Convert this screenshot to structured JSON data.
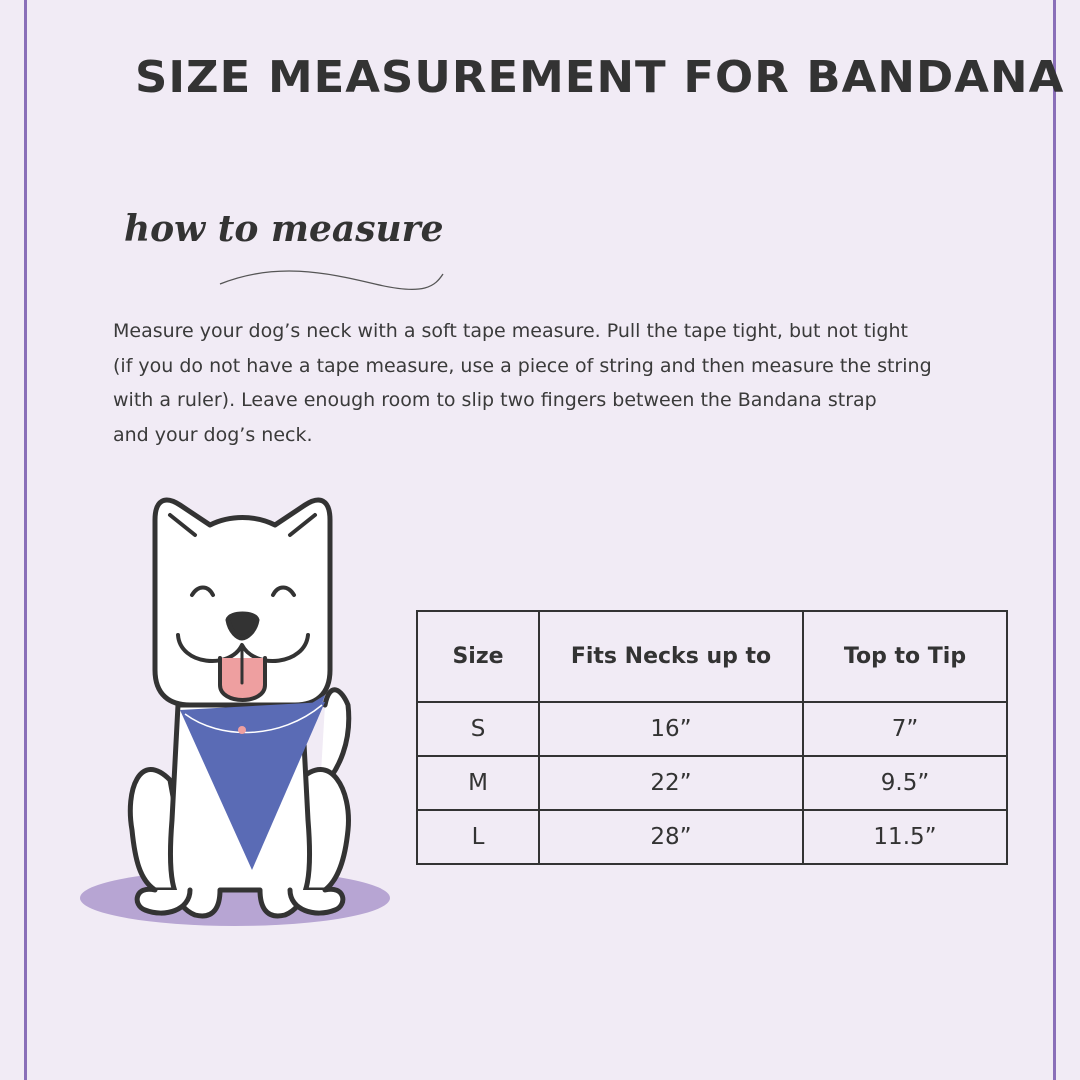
{
  "title": "SIZE MEASUREMENT FOR BANDANA",
  "subtitle": "how to measure",
  "instructions": [
    "Measure your dog’s neck with a soft tape measure. Pull the tape tight, but not tight",
    "(if you do not have a tape measure, use a piece of string and then measure the string",
    "with a ruler). Leave enough room to slip two fingers between the Bandana strap",
    "and your dog’s neck."
  ],
  "colors": {
    "border": "#8a6fb8",
    "bandana": "#5a6bb5",
    "shadow": "#b7a5d3",
    "tongue": "#ee9fa0",
    "background": "#f1ebf5"
  },
  "illustration": "dog-wearing-bandana",
  "size_table": {
    "headers": [
      "Size",
      "Fits Necks up to",
      "Top to Tip"
    ],
    "rows": [
      [
        "S",
        "16”",
        "7”"
      ],
      [
        "M",
        "22”",
        "9.5”"
      ],
      [
        "L",
        "28”",
        "11.5”"
      ]
    ]
  }
}
